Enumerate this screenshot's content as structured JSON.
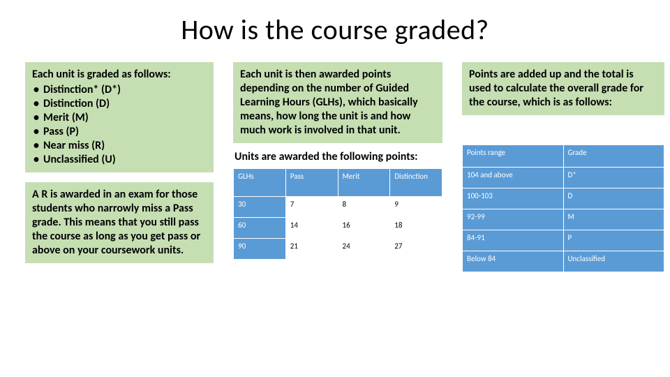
{
  "title": "How is the course graded?",
  "left": {
    "lead": "Each unit is graded as follows:",
    "bullets": [
      "Distinction* (D*)",
      "Distinction (D)",
      "Merit (M)",
      "Pass (P)",
      "Near miss (R)",
      "Unclassified (U)"
    ],
    "paragraph": "A R is awarded in an exam for those students who narrowly miss a Pass grade. This means that you still pass the course as long as you get pass or above on your coursework units."
  },
  "mid": {
    "paragraph": "Each unit is then awarded points depending on the number of Guided Learning Hours (GLHs), which basically means, how long the unit is and how much work is involved in that unit.",
    "subhead": "Units are awarded the following points:",
    "points_table": {
      "headers": [
        "GLHs",
        "Pass",
        "Merit",
        "Distinction"
      ],
      "rows": [
        [
          "30",
          "7",
          "8",
          "9"
        ],
        [
          "60",
          "14",
          "16",
          "18"
        ],
        [
          "90",
          "21",
          "24",
          "27"
        ]
      ]
    }
  },
  "right": {
    "paragraph": "Points are added up and the total is used to calculate the overall grade for the course, which is as follows:",
    "grade_table": {
      "headers": [
        "Points range",
        "Grade"
      ],
      "rows": [
        [
          "104 and above",
          "D*"
        ],
        [
          "100-103",
          "D"
        ],
        [
          "92-99",
          "M"
        ],
        [
          "84-91",
          "P"
        ],
        [
          "Below 84",
          "Unclassified"
        ]
      ]
    }
  },
  "colors": {
    "box_bg": "#c5dfb3",
    "table_header_bg": "#5b9bd5",
    "table_header_fg": "#ffffff",
    "background": "#ffffff",
    "text": "#000000"
  }
}
